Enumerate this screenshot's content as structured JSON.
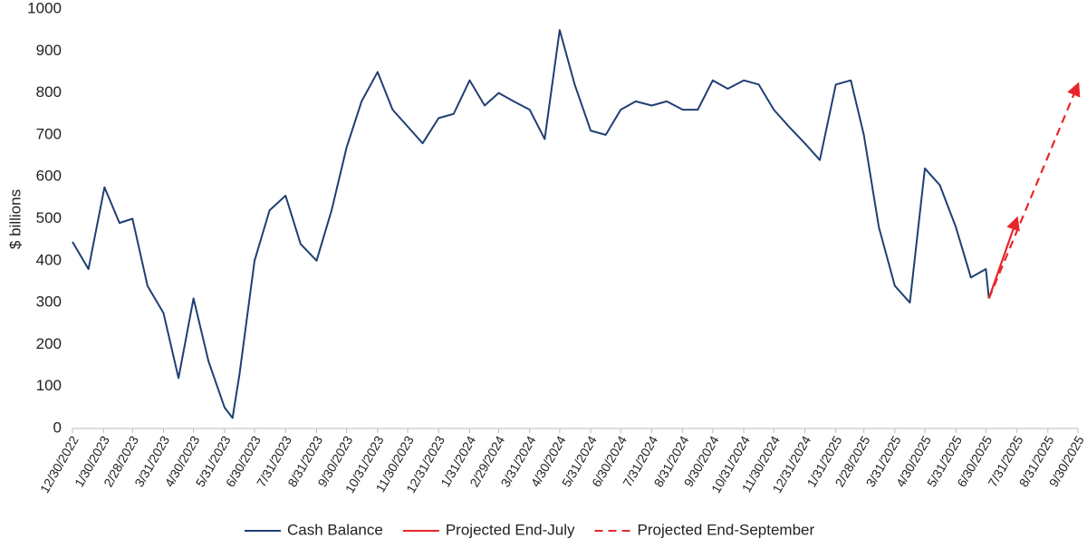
{
  "chart_data": {
    "type": "line",
    "ylabel": "$ billions",
    "ylim": [
      0,
      1000
    ],
    "yticks": [
      0,
      100,
      200,
      300,
      400,
      500,
      600,
      700,
      800,
      900,
      1000
    ],
    "xlim": [
      "12/30/2022",
      "9/30/2025"
    ],
    "xticks": [
      "12/30/2022",
      "1/30/2023",
      "2/28/2023",
      "3/31/2023",
      "4/30/2023",
      "5/31/2023",
      "6/30/2023",
      "7/31/2023",
      "8/31/2023",
      "9/30/2023",
      "10/31/2023",
      "11/30/2023",
      "12/31/2023",
      "1/31/2024",
      "2/29/2024",
      "3/31/2024",
      "4/30/2024",
      "5/31/2024",
      "6/30/2024",
      "7/31/2024",
      "8/31/2024",
      "9/30/2024",
      "10/31/2024",
      "11/30/2024",
      "12/31/2024",
      "1/31/2025",
      "2/28/2025",
      "3/31/2025",
      "4/30/2025",
      "5/31/2025",
      "6/30/2025",
      "7/31/2025",
      "8/31/2025",
      "9/30/2025"
    ],
    "legend": "bottom",
    "series": [
      {
        "name": "Cash Balance",
        "color": "#1f3f73",
        "style": "solid",
        "x": [
          "12/30/2022",
          "1/15/2023",
          "1/31/2023",
          "2/15/2023",
          "2/28/2023",
          "3/15/2023",
          "3/31/2023",
          "4/15/2023",
          "4/30/2023",
          "5/15/2023",
          "5/31/2023",
          "6/8/2023",
          "6/15/2023",
          "6/30/2023",
          "7/15/2023",
          "7/31/2023",
          "8/15/2023",
          "8/31/2023",
          "9/15/2023",
          "9/30/2023",
          "10/15/2023",
          "10/31/2023",
          "11/15/2023",
          "11/30/2023",
          "12/15/2023",
          "12/31/2023",
          "1/15/2024",
          "1/31/2024",
          "2/15/2024",
          "2/29/2024",
          "3/15/2024",
          "3/31/2024",
          "4/15/2024",
          "4/30/2024",
          "5/15/2024",
          "5/31/2024",
          "6/15/2024",
          "6/30/2024",
          "7/15/2024",
          "7/31/2024",
          "8/15/2024",
          "8/31/2024",
          "9/15/2024",
          "9/30/2024",
          "10/15/2024",
          "10/31/2024",
          "11/15/2024",
          "11/30/2024",
          "12/15/2024",
          "12/31/2024",
          "1/15/2025",
          "1/31/2025",
          "2/15/2025",
          "2/28/2025",
          "3/15/2025",
          "3/31/2025",
          "4/15/2025",
          "4/30/2025",
          "5/15/2025",
          "5/31/2025",
          "6/15/2025",
          "6/30/2025",
          "7/3/2025"
        ],
        "values": [
          445,
          380,
          575,
          490,
          500,
          340,
          275,
          120,
          310,
          160,
          50,
          25,
          130,
          400,
          520,
          555,
          440,
          400,
          520,
          670,
          780,
          850,
          760,
          720,
          680,
          740,
          750,
          830,
          770,
          800,
          780,
          760,
          690,
          950,
          820,
          710,
          700,
          760,
          780,
          770,
          780,
          760,
          760,
          830,
          810,
          830,
          820,
          760,
          720,
          680,
          640,
          820,
          830,
          700,
          480,
          340,
          300,
          620,
          580,
          480,
          360,
          380,
          310
        ]
      },
      {
        "name": "Projected End-July",
        "color": "#e8262a",
        "style": "solid",
        "x": [
          "7/3/2025",
          "7/31/2025"
        ],
        "values": [
          310,
          500
        ]
      },
      {
        "name": "Projected End-September",
        "color": "#e8262a",
        "style": "dashed",
        "x": [
          "7/3/2025",
          "9/30/2025"
        ],
        "values": [
          310,
          820
        ]
      }
    ]
  }
}
